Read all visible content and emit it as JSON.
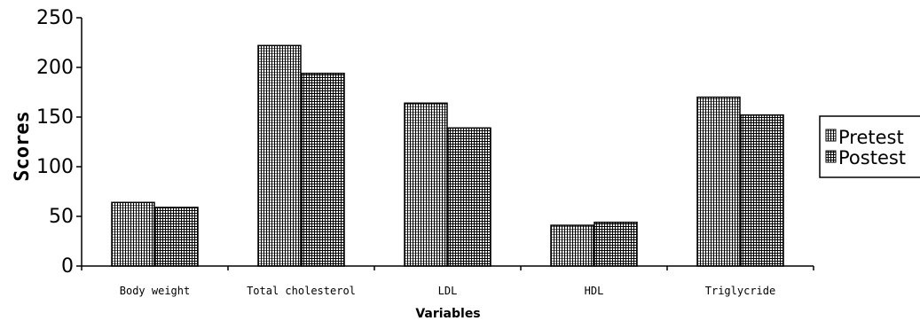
{
  "chart_data": {
    "type": "bar",
    "title": "",
    "xlabel": "Variables",
    "ylabel": "Scores",
    "ylim": [
      0,
      250
    ],
    "yticks": [
      0,
      50,
      100,
      150,
      200,
      250
    ],
    "categories": [
      "Body weight",
      "Total cholesterol",
      "LDL",
      "HDL",
      "Triglycride"
    ],
    "series": [
      {
        "name": "Pretest",
        "values": [
          64,
          222,
          164,
          41,
          170
        ]
      },
      {
        "name": "Postest",
        "values": [
          59,
          194,
          139,
          44,
          152
        ]
      }
    ],
    "legend_position": "right",
    "grid": false
  }
}
